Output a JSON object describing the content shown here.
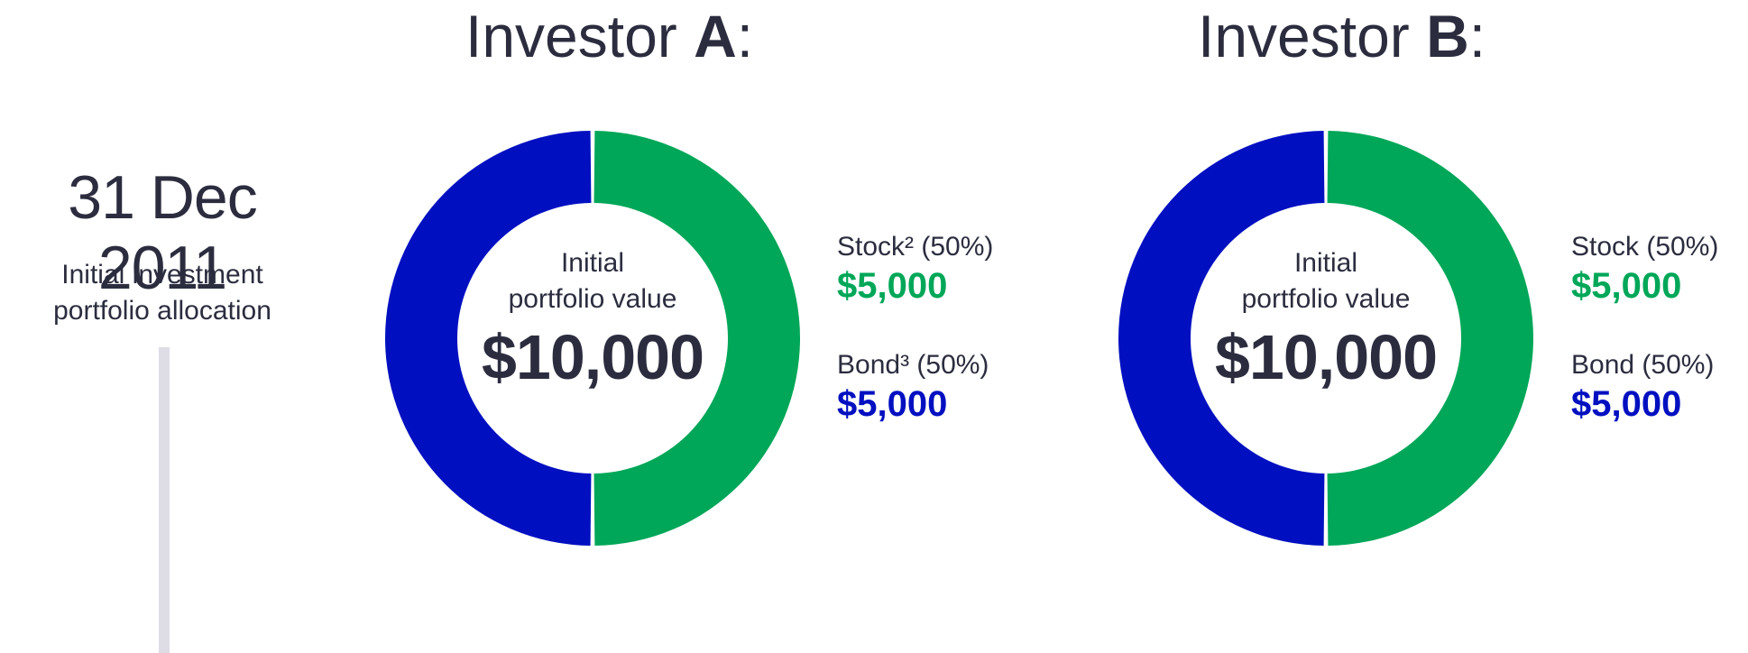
{
  "timeline": {
    "date": "31 Dec 2011",
    "caption_line1": "Initial investment",
    "caption_line2": "portfolio allocation"
  },
  "colors": {
    "stock": "#00a758",
    "bond": "#0010c0",
    "text": "#2b2d3f",
    "timeline": "#dedde6"
  },
  "chart_data": [
    {
      "type": "pie",
      "title_prefix": "Investor ",
      "title_letter": "A",
      "title_suffix": ":",
      "center_caption_line1": "Initial",
      "center_caption_line2": "portfolio value",
      "center_value": "$10,000",
      "slices": [
        {
          "label": "Stock² (50%)",
          "value": 5000,
          "display": "$5,000",
          "color": "#00a758"
        },
        {
          "label": "Bond³ (50%)",
          "value": 5000,
          "display": "$5,000",
          "color": "#0010c0"
        }
      ]
    },
    {
      "type": "pie",
      "title_prefix": "Investor ",
      "title_letter": "B",
      "title_suffix": ":",
      "center_caption_line1": "Initial",
      "center_caption_line2": "portfolio value",
      "center_value": "$10,000",
      "slices": [
        {
          "label": "Stock (50%)",
          "value": 5000,
          "display": "$5,000",
          "color": "#00a758"
        },
        {
          "label": "Bond (50%)",
          "value": 5000,
          "display": "$5,000",
          "color": "#0010c0"
        }
      ]
    }
  ]
}
